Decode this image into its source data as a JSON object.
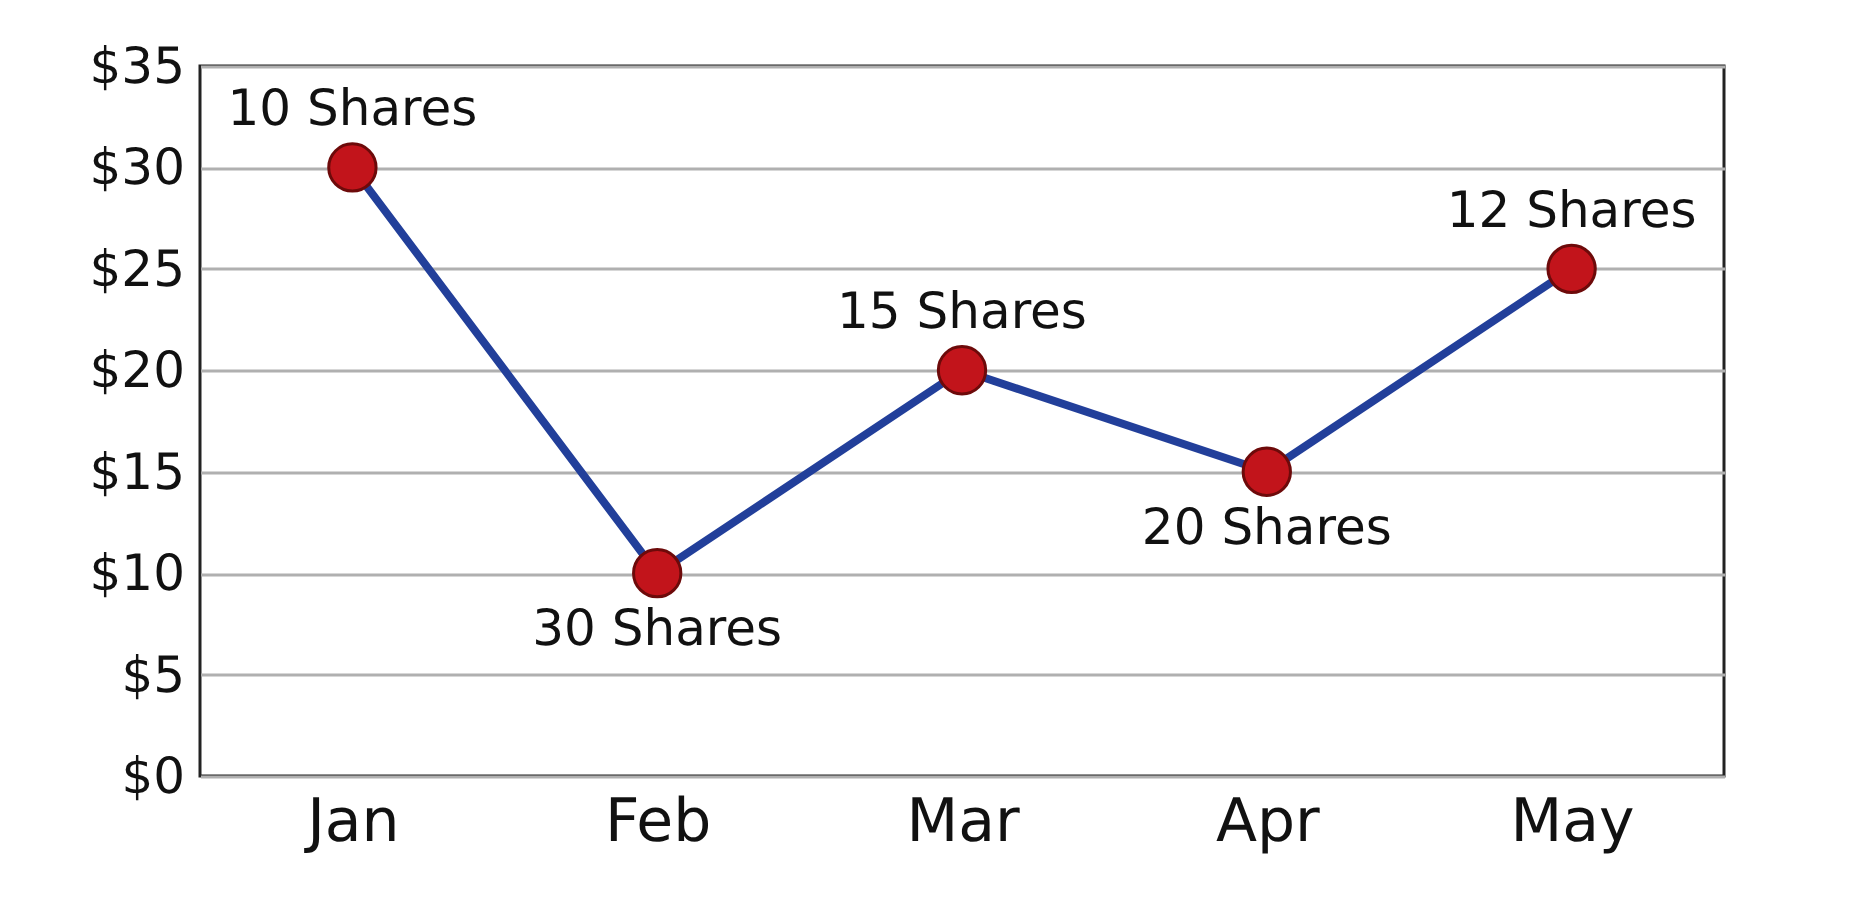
{
  "chart_data": {
    "type": "line",
    "categories": [
      "Jan",
      "Feb",
      "Mar",
      "Apr",
      "May"
    ],
    "series": [
      {
        "color": "#223f9a",
        "values": [
          30,
          10,
          20,
          15,
          25
        ]
      }
    ],
    "annotations": [
      {
        "text": "10 Shares",
        "x": "Jan",
        "y": 30
      },
      {
        "text": "30 Shares",
        "x": "Feb",
        "y": 10
      },
      {
        "text": "15 Shares",
        "x": "Mar",
        "y": 20
      },
      {
        "text": "20 Shares",
        "x": "Apr",
        "y": 15
      },
      {
        "text": "12 Shares",
        "x": "May",
        "y": 25
      }
    ],
    "marker": "circle",
    "ylim": [
      0,
      35
    ],
    "yticks": [
      {
        "value": 0,
        "label": "$0"
      },
      {
        "value": 5,
        "label": "$5"
      },
      {
        "value": 10,
        "label": "$10"
      },
      {
        "value": 15,
        "label": "$15"
      },
      {
        "value": 20,
        "label": "$20"
      },
      {
        "value": 25,
        "label": "$25"
      },
      {
        "value": 30,
        "label": "$30"
      },
      {
        "value": 35,
        "label": "$35"
      }
    ],
    "grid": "y"
  }
}
